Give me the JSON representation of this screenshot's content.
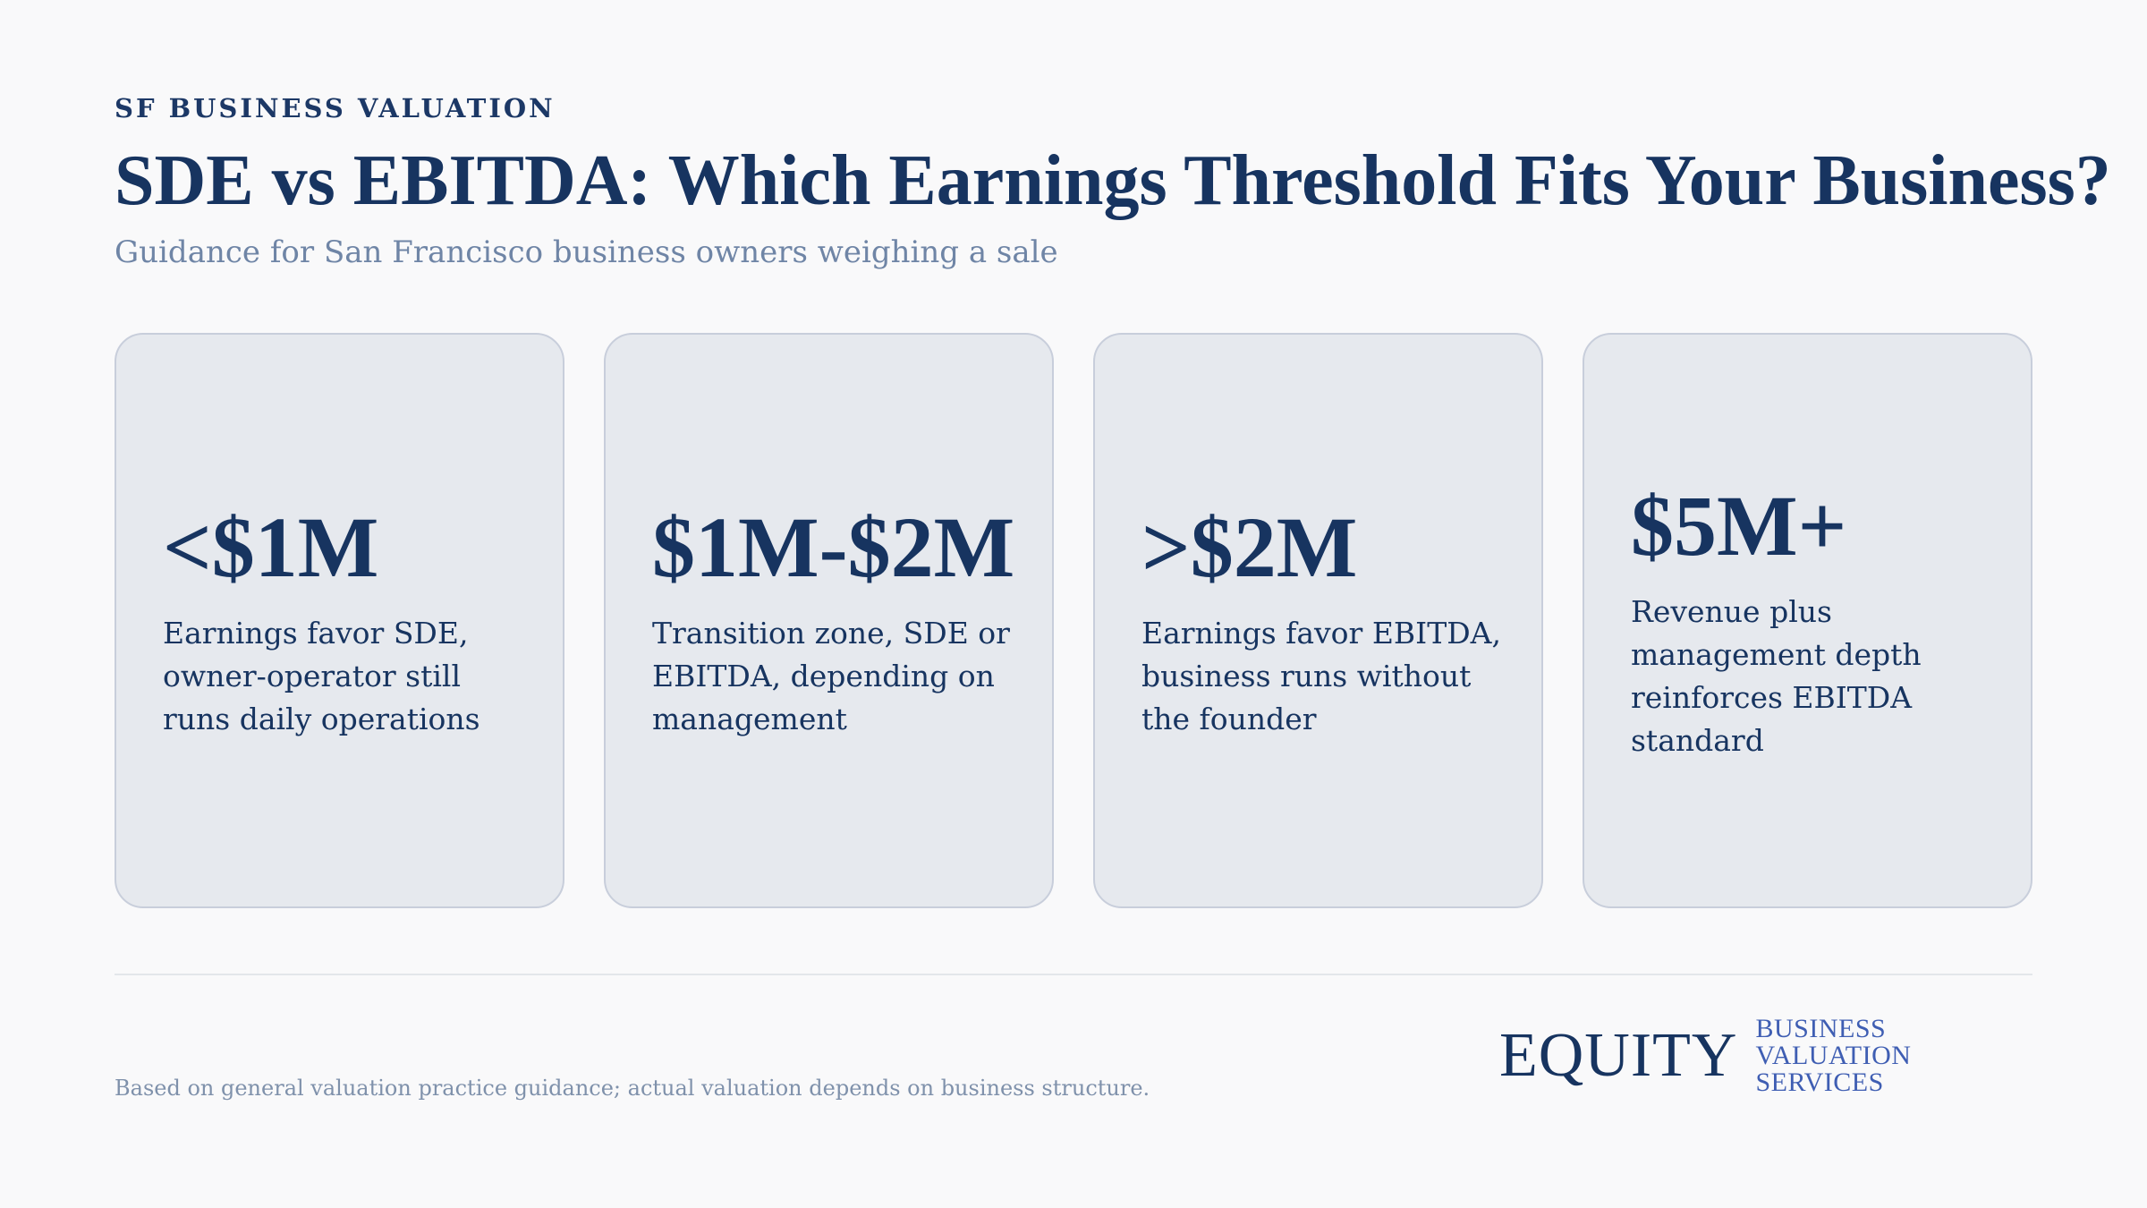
{
  "header": {
    "eyebrow": "SF BUSINESS VALUATION",
    "title": "SDE vs EBITDA: Which Earnings Threshold Fits Your Business?",
    "subtitle": "Guidance for San Francisco business owners weighing a sale"
  },
  "cards": [
    {
      "value": "<$1M",
      "description": "Earnings favor SDE, owner-operator still runs daily operations"
    },
    {
      "value": "$1M-$2M",
      "description": "Transition zone, SDE or EBITDA, depending on management"
    },
    {
      "value": ">$2M",
      "description": "Earnings favor EBITDA, business runs without the founder"
    },
    {
      "value": "$5M+",
      "description": "Revenue plus management depth reinforces EBITDA standard"
    }
  ],
  "footer": {
    "note": "Based on general valuation practice guidance; actual valuation depends on business structure.",
    "brand_logo": "EQUITY",
    "brand_tagline": "BUSINESS VALUATION SERVICES"
  },
  "colors": {
    "primary_navy": "#173460",
    "card_background": "#e6e9ee",
    "card_border": "#c8cedb",
    "subtitle_gray": "#6f85a6",
    "brand_accent_blue": "#3f5eb3"
  }
}
